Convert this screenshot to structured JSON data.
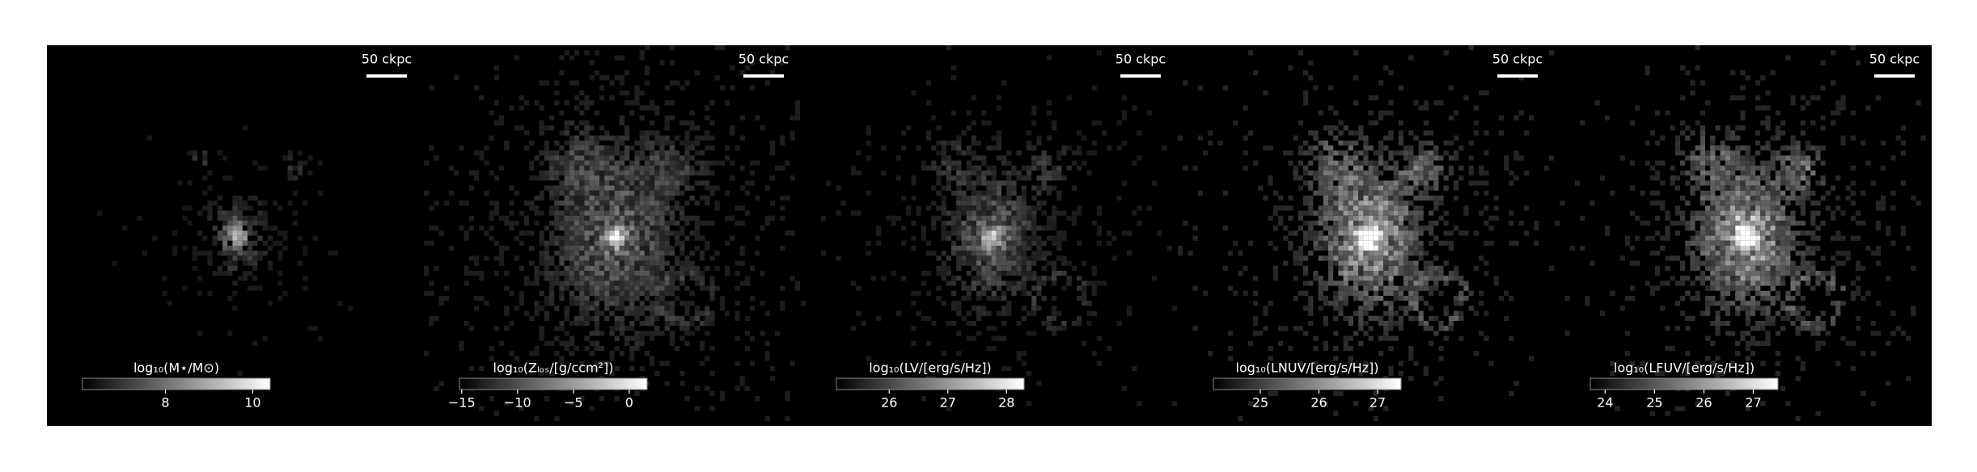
{
  "chart_data": [
    {
      "type": "image",
      "scalebar": "50 ckpc",
      "colorbar_label": "log₁₀(M⋆/M⊙)",
      "xlim": [
        6.1,
        10.4
      ],
      "xticks": [
        8,
        10
      ]
    },
    {
      "type": "image",
      "scalebar": "50 ckpc",
      "colorbar_label": "log₁₀(Zₗₒₛ/[g/ccm²])",
      "xlim": [
        -15.2,
        1.6
      ],
      "xticks": [
        {
          "value": -15,
          "label": "−15"
        },
        {
          "value": -10,
          "label": "−10"
        },
        {
          "value": -5,
          "label": "−5"
        },
        {
          "value": 0,
          "label": "0"
        }
      ]
    },
    {
      "type": "image",
      "scalebar": "50 ckpc",
      "colorbar_label": "log₁₀(LV/[erg/s/Hz])",
      "xlim": [
        25.1,
        28.3
      ],
      "xticks": [
        26,
        27,
        28
      ]
    },
    {
      "type": "image",
      "scalebar": "50 ckpc",
      "colorbar_label": "log₁₀(LNUV/[erg/s/Hz])",
      "xlim": [
        24.2,
        27.4
      ],
      "xticks": [
        25,
        26,
        27
      ]
    },
    {
      "type": "image",
      "scalebar": "50 ckpc",
      "colorbar_label": "log₁₀(LFUV/[erg/s/Hz])",
      "xlim": [
        23.7,
        27.5
      ],
      "xticks": [
        24,
        25,
        26,
        27
      ]
    }
  ]
}
